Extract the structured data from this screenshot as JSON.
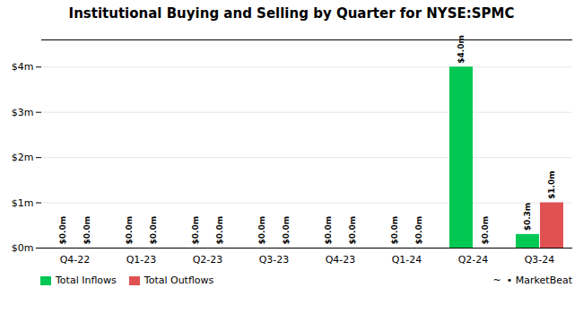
{
  "chart_data": {
    "type": "bar",
    "title": "Institutional Buying and Selling by Quarter for NYSE:SPMC",
    "categories": [
      "Q4-22",
      "Q1-23",
      "Q2-23",
      "Q3-23",
      "Q4-23",
      "Q1-24",
      "Q2-24",
      "Q3-24"
    ],
    "series": [
      {
        "name": "Total Inflows",
        "color": "#00c853",
        "values": [
          0.0,
          0.0,
          0.0,
          0.0,
          0.0,
          0.0,
          4.0,
          0.3
        ],
        "value_labels": [
          "$0.0m",
          "$0.0m",
          "$0.0m",
          "$0.0m",
          "$0.0m",
          "$0.0m",
          "$4.0m",
          "$0.3m"
        ]
      },
      {
        "name": "Total Outflows",
        "color": "#e05252",
        "values": [
          0.0,
          0.0,
          0.0,
          0.0,
          0.0,
          0.0,
          0.0,
          1.0
        ],
        "value_labels": [
          "$0.0m",
          "$0.0m",
          "$0.0m",
          "$0.0m",
          "$0.0m",
          "$0.0m",
          "$0.0m",
          "$1.0m"
        ]
      }
    ],
    "ylim": [
      0,
      4.6
    ],
    "yticks": [
      {
        "value": 0,
        "label": "$0m"
      },
      {
        "value": 1,
        "label": "$1m"
      },
      {
        "value": 2,
        "label": "$2m"
      },
      {
        "value": 3,
        "label": "$3m"
      },
      {
        "value": 4,
        "label": "$4m"
      }
    ],
    "grid": true,
    "data_labels": true,
    "legend": "lower left",
    "annotations": [
      "~",
      "• MarketBeat"
    ]
  }
}
